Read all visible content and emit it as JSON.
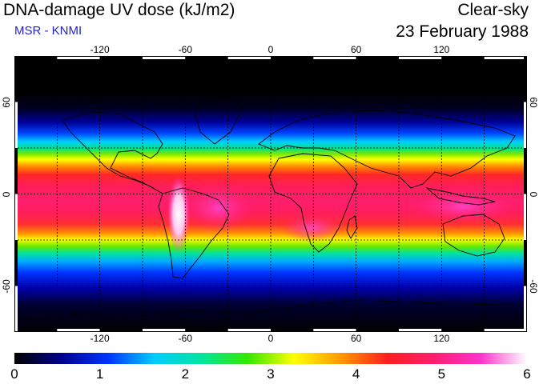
{
  "header": {
    "title": "DNA-damage UV dose (kJ/m2)",
    "credit": "MSR - KNMI",
    "condition": "Clear-sky",
    "date": "23 February 1988"
  },
  "map": {
    "longitude_ticks": [
      "-120",
      "-60",
      "0",
      "60",
      "120"
    ],
    "latitude_ticks": [
      "60",
      "0",
      "-60"
    ],
    "longitude_range": [
      -180,
      180
    ],
    "latitude_range": [
      -90,
      90
    ],
    "gridlines_lon": [
      -150,
      -120,
      -90,
      -60,
      -30,
      0,
      30,
      60,
      90,
      120,
      150
    ],
    "gridlines_lat": [
      -60,
      -30,
      0,
      30,
      60
    ]
  },
  "colorbar": {
    "labels": [
      "0",
      "1",
      "2",
      "3",
      "4",
      "5",
      "6"
    ],
    "range": [
      0,
      6
    ],
    "stops": [
      "#000000",
      "#00008b",
      "#0033ff",
      "#00ccff",
      "#00e5a0",
      "#33e800",
      "#ffff00",
      "#ff9900",
      "#ff1e1e",
      "#ff1e6e",
      "#ff33cc",
      "#ffffff"
    ]
  },
  "colors": {
    "credit_blue": "#1f1fd0",
    "ocean_dark": "#000000"
  }
}
